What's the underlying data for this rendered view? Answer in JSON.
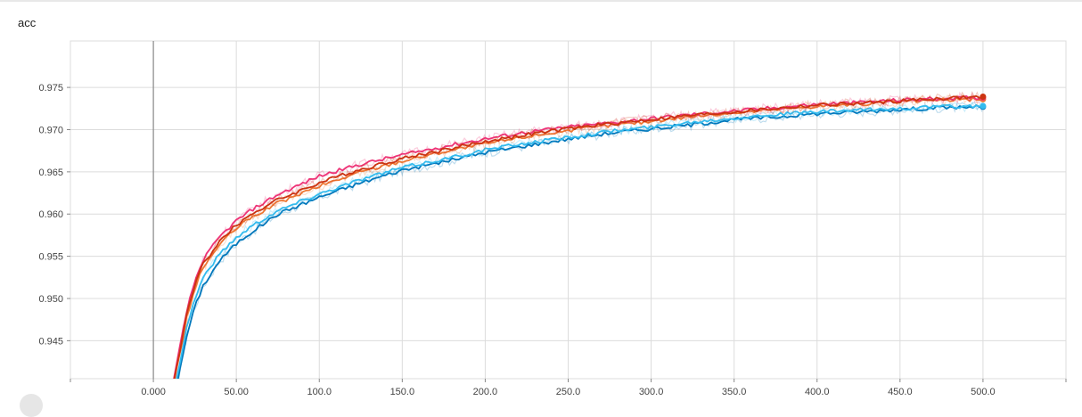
{
  "title": "acc",
  "chart_data": {
    "type": "line",
    "title": "acc",
    "xlabel": "",
    "ylabel": "",
    "xlim": [
      -50,
      550
    ],
    "ylim": [
      0.9405,
      0.9805
    ],
    "x_ticks": [
      0,
      50,
      100,
      150,
      200,
      250,
      300,
      350,
      400,
      450,
      500
    ],
    "x_tick_labels": [
      "0.000",
      "50.00",
      "100.0",
      "150.0",
      "200.0",
      "250.0",
      "300.0",
      "350.0",
      "400.0",
      "450.0",
      "500.0"
    ],
    "y_ticks": [
      0.945,
      0.95,
      0.955,
      0.96,
      0.965,
      0.97,
      0.975
    ],
    "y_tick_labels": [
      "0.945",
      "0.950",
      "0.955",
      "0.960",
      "0.965",
      "0.970",
      "0.975"
    ],
    "grid": true,
    "legend": "none",
    "x": [
      12,
      15,
      20,
      25,
      30,
      40,
      50,
      60,
      75,
      100,
      125,
      150,
      175,
      200,
      225,
      250,
      275,
      300,
      325,
      350,
      375,
      400,
      425,
      450,
      475,
      500
    ],
    "series": [
      {
        "color": "#0077bb",
        "values": [
          0.938,
          0.9405,
          0.9455,
          0.949,
          0.9515,
          0.9545,
          0.9565,
          0.958,
          0.96,
          0.962,
          0.9637,
          0.9652,
          0.9662,
          0.9673,
          0.9681,
          0.9689,
          0.9696,
          0.9701,
          0.9706,
          0.9712,
          0.9715,
          0.9719,
          0.9721,
          0.9724,
          0.9726,
          0.9727
        ]
      },
      {
        "color": "#33bbee",
        "values": [
          0.939,
          0.9415,
          0.9465,
          0.95,
          0.9525,
          0.9553,
          0.9572,
          0.9587,
          0.9604,
          0.9624,
          0.9641,
          0.9655,
          0.9665,
          0.9676,
          0.9684,
          0.9691,
          0.9698,
          0.9703,
          0.9709,
          0.9714,
          0.9718,
          0.9721,
          0.9723,
          0.9725,
          0.9727,
          0.9728
        ]
      },
      {
        "color": "#ee7733",
        "values": [
          0.9395,
          0.9425,
          0.9476,
          0.9512,
          0.9537,
          0.9564,
          0.9583,
          0.9597,
          0.9613,
          0.9633,
          0.965,
          0.9663,
          0.9674,
          0.9683,
          0.9692,
          0.9699,
          0.9705,
          0.971,
          0.9716,
          0.972,
          0.9724,
          0.9728,
          0.973,
          0.9733,
          0.9735,
          0.9736
        ]
      },
      {
        "color": "#ee3377",
        "values": [
          0.94,
          0.9432,
          0.9484,
          0.9521,
          0.9546,
          0.9573,
          0.9592,
          0.9606,
          0.9623,
          0.9645,
          0.9659,
          0.967,
          0.968,
          0.9689,
          0.9697,
          0.9703,
          0.9708,
          0.9713,
          0.9718,
          0.9722,
          0.9726,
          0.973,
          0.9732,
          0.9735,
          0.9737,
          0.9738
        ]
      },
      {
        "color": "#cc3311",
        "values": [
          0.9398,
          0.9428,
          0.948,
          0.9516,
          0.9541,
          0.9568,
          0.9587,
          0.9601,
          0.9617,
          0.9637,
          0.9653,
          0.9666,
          0.9676,
          0.9686,
          0.9694,
          0.9701,
          0.9707,
          0.9712,
          0.9717,
          0.9721,
          0.9725,
          0.9729,
          0.9731,
          0.9734,
          0.9737,
          0.9739
        ]
      }
    ]
  }
}
